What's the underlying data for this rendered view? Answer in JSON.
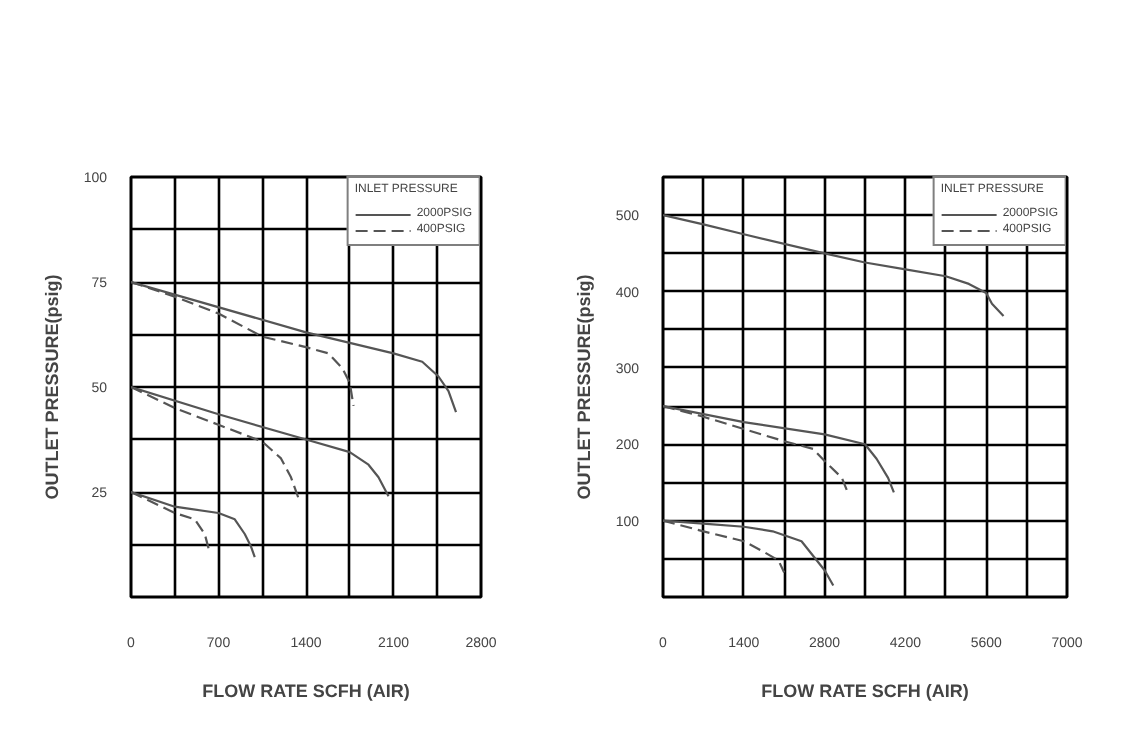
{
  "chart_data": [
    {
      "type": "line",
      "xlabel": "FLOW RATE SCFH (AIR)",
      "ylabel": "OUTLET PRESSURE(psig)",
      "legend_title": "INLET PRESSURE",
      "legend": "top right",
      "grid": true,
      "xlim": [
        0,
        2800
      ],
      "ylim": [
        0,
        100
      ],
      "xticks": [
        0,
        {
          "value": 350,
          "label": null
        },
        700,
        {
          "value": 1050,
          "label": null
        },
        1400,
        {
          "value": 1750,
          "label": null
        },
        2100,
        {
          "value": 2450,
          "label": null
        },
        2800
      ],
      "yticks": [
        {
          "value": 0,
          "label": null
        },
        {
          "value": 12.5,
          "label": null
        },
        25,
        {
          "value": 37.5,
          "label": null
        },
        50,
        {
          "value": 62.5,
          "label": null
        },
        75,
        {
          "value": 87.5,
          "label": null
        },
        100
      ],
      "series": [
        {
          "name": "2000PSIG",
          "color": "#555555",
          "line_style": "solid",
          "x": [
            0,
            1400,
            2100,
            2330,
            2460,
            2540,
            2600
          ],
          "values": [
            75,
            63,
            58,
            56,
            52.5,
            49,
            44
          ]
        },
        {
          "color": "#555555",
          "line_style": "solid",
          "x": [
            0,
            700,
            1400,
            1750,
            1900,
            1980,
            2060
          ],
          "values": [
            50,
            43.5,
            37.5,
            34.5,
            31.5,
            28.5,
            24
          ]
        },
        {
          "color": "#555555",
          "line_style": "solid",
          "x": [
            0,
            350,
            700,
            830,
            910,
            960,
            990
          ],
          "values": [
            25,
            21.5,
            20,
            18.5,
            15,
            12,
            9.5
          ]
        },
        {
          "name": "400PSIG",
          "color": "#555555",
          "line_style": "dashed",
          "x": [
            0,
            350,
            700,
            1050,
            1400,
            1580,
            1690,
            1750,
            1780
          ],
          "values": [
            75,
            71.5,
            67.5,
            62,
            59.5,
            58,
            54.5,
            51,
            45.5
          ]
        },
        {
          "color": "#555555",
          "line_style": "dashed",
          "x": [
            0,
            350,
            700,
            1050,
            1200,
            1280,
            1340
          ],
          "values": [
            50,
            45,
            41,
            37,
            33,
            28.5,
            23.5
          ]
        },
        {
          "color": "#555555",
          "line_style": "dashed",
          "x": [
            0,
            350,
            510,
            590,
            630
          ],
          "values": [
            25,
            20,
            18.5,
            15,
            10.5
          ]
        }
      ]
    },
    {
      "type": "line",
      "xlabel": "FLOW RATE SCFH (AIR)",
      "ylabel": "OUTLET PRESSURE(psig)",
      "legend_title": "INLET PRESSURE",
      "legend": "top right",
      "grid": true,
      "xlim": [
        0,
        7000
      ],
      "ylim": [
        0,
        550
      ],
      "xticks": [
        0,
        {
          "value": 700,
          "label": null
        },
        1400,
        {
          "value": 2100,
          "label": null
        },
        2800,
        {
          "value": 3500,
          "label": null
        },
        4200,
        {
          "value": 4900,
          "label": null
        },
        5600,
        {
          "value": 6300,
          "label": null
        },
        7000
      ],
      "yticks": [
        {
          "value": 0,
          "label": null
        },
        {
          "value": 50,
          "label": null
        },
        100,
        {
          "value": 150,
          "label": null
        },
        200,
        {
          "value": 250,
          "label": null
        },
        300,
        {
          "value": 350,
          "label": null
        },
        400,
        {
          "value": 450,
          "label": null
        },
        500,
        {
          "value": 550,
          "label": null
        }
      ],
      "series": [
        {
          "name": "2000PSIG",
          "color": "#555555",
          "line_style": "solid",
          "x": [
            0,
            700,
            1400,
            2800,
            3500,
            4200,
            4900,
            5300,
            5600,
            5700,
            5900
          ],
          "values": [
            500,
            488,
            475,
            450,
            438,
            429,
            420,
            410,
            398,
            384,
            368
          ]
        },
        {
          "color": "#555555",
          "line_style": "solid",
          "x": [
            0,
            1400,
            2800,
            3500,
            3700,
            3900,
            4000
          ],
          "values": [
            250,
            229,
            213,
            200,
            181,
            156,
            137
          ]
        },
        {
          "color": "#555555",
          "line_style": "solid",
          "x": [
            0,
            700,
            1400,
            1900,
            2400,
            2600,
            2800,
            2950
          ],
          "values": [
            100,
            96,
            92,
            86,
            73,
            54,
            35,
            15
          ]
        },
        {
          "name": "400PSIG",
          "color": "#555555",
          "line_style": "dashed",
          "x": [
            0,
            700,
            1400,
            2100,
            2600,
            2800,
            3100,
            3200
          ],
          "values": [
            250,
            236,
            220,
            204,
            194,
            178,
            156,
            137
          ]
        },
        {
          "color": "#555555",
          "line_style": "dashed",
          "x": [
            0,
            700,
            1400,
            1700,
            2000,
            2100
          ],
          "values": [
            100,
            86,
            73,
            61,
            48,
            32
          ]
        }
      ]
    }
  ]
}
